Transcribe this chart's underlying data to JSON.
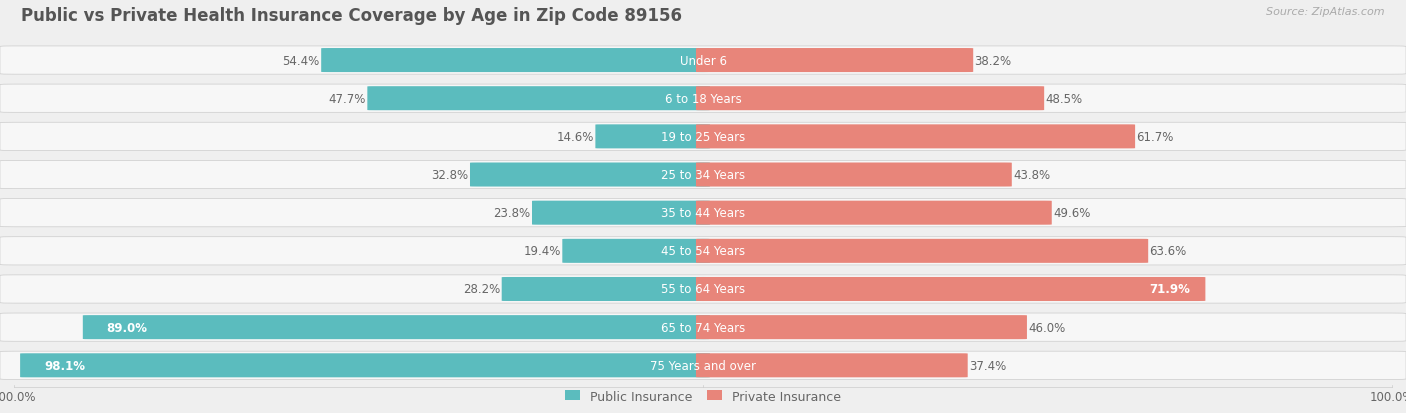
{
  "title": "Public vs Private Health Insurance Coverage by Age in Zip Code 89156",
  "source": "Source: ZipAtlas.com",
  "categories": [
    "Under 6",
    "6 to 18 Years",
    "19 to 25 Years",
    "25 to 34 Years",
    "35 to 44 Years",
    "45 to 54 Years",
    "55 to 64 Years",
    "65 to 74 Years",
    "75 Years and over"
  ],
  "public_values": [
    54.4,
    47.7,
    14.6,
    32.8,
    23.8,
    19.4,
    28.2,
    89.0,
    98.1
  ],
  "private_values": [
    38.2,
    48.5,
    61.7,
    43.8,
    49.6,
    63.6,
    71.9,
    46.0,
    37.4
  ],
  "public_color": "#5bbcbe",
  "private_color": "#e8857a",
  "bg_color": "#efefef",
  "row_bg_color": "#f7f7f7",
  "title_color": "#555555",
  "label_color": "#666666",
  "source_color": "#aaaaaa",
  "legend_public": "Public Insurance",
  "legend_private": "Private Insurance",
  "max_val": 100.0,
  "title_fontsize": 12,
  "label_fontsize": 8.5,
  "tick_fontsize": 8.5
}
